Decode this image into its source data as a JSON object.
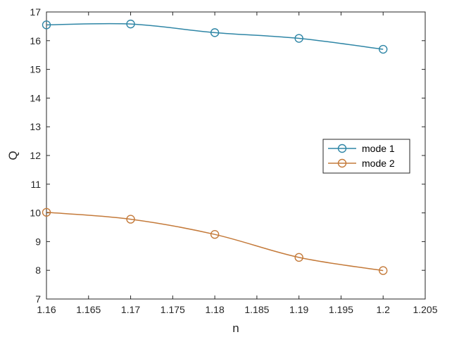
{
  "chart_data": {
    "type": "line",
    "xlabel": "n",
    "ylabel": "Q",
    "xlim": [
      1.16,
      1.205
    ],
    "ylim": [
      7,
      17
    ],
    "xticks": [
      "1.16",
      "1.165",
      "1.17",
      "1.175",
      "1.18",
      "1.185",
      "1.19",
      "1.195",
      "1.2",
      "1.205"
    ],
    "yticks": [
      "7",
      "8",
      "9",
      "10",
      "11",
      "12",
      "13",
      "14",
      "15",
      "16",
      "17"
    ],
    "grid": false,
    "legend_position": "right",
    "marker": "circle",
    "x": [
      1.16,
      1.17,
      1.18,
      1.19,
      1.2
    ],
    "series": [
      {
        "name": "mode 1",
        "color": "#2f86a6",
        "values": [
          16.55,
          16.58,
          16.28,
          16.08,
          15.7
        ]
      },
      {
        "name": "mode 2",
        "color": "#c47a3a",
        "values": [
          10.02,
          9.78,
          9.25,
          8.45,
          7.99
        ]
      }
    ]
  }
}
